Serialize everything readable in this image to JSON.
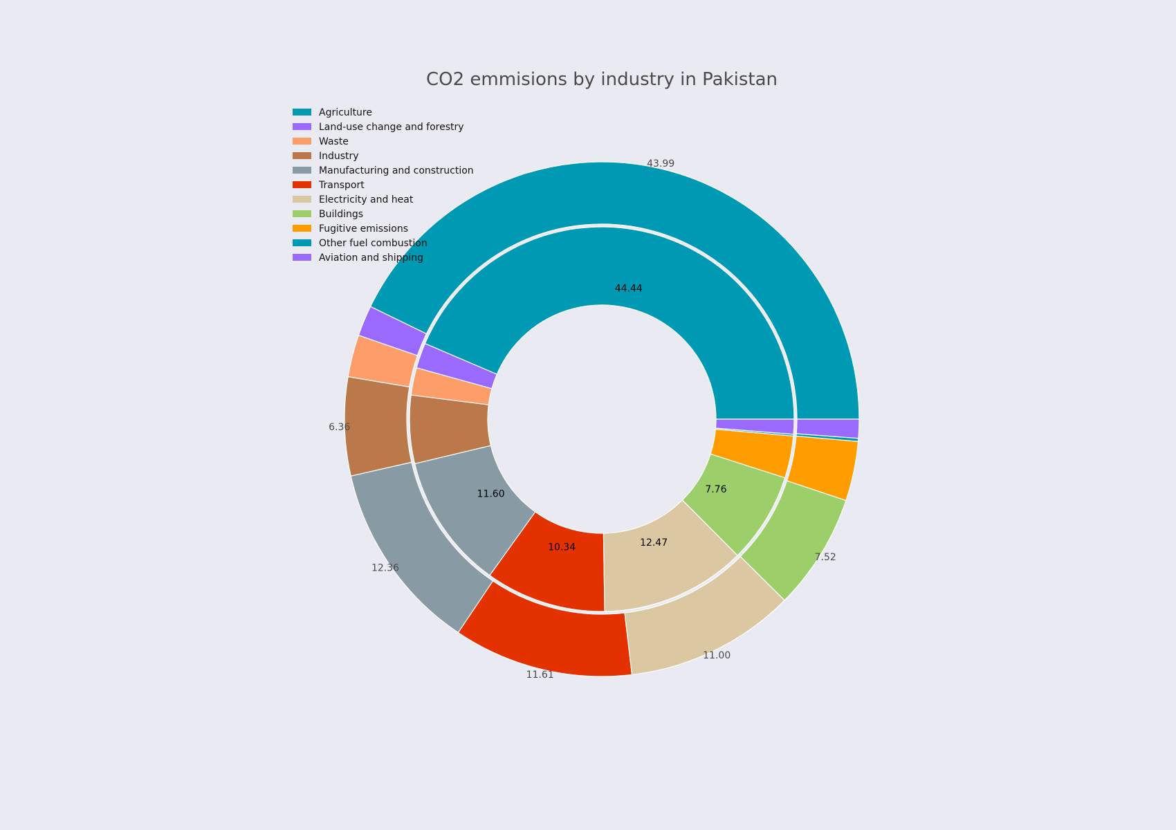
{
  "chart_data": {
    "type": "pie",
    "title": "CO2 emmisions by industry in Pakistan",
    "legend_position": "top-left",
    "categories": [
      "Agriculture",
      "Land-use change and forestry",
      "Waste",
      "Industry",
      "Manufacturing and construction",
      "Transport",
      "Electricity and heat",
      "Buildings",
      "Fugitive emissions",
      "Other fuel combustion",
      "Aviation and shipping"
    ],
    "colors": [
      "#0099b4",
      "#9a6aff",
      "#fd9d6a",
      "#bb784b",
      "#889aa4",
      "#e33200",
      "#dbc7a2",
      "#9ccf69",
      "#ff9c00",
      "#0099b4",
      "#9a6aff"
    ],
    "series": [
      {
        "ring": "outer",
        "values": [
          43.99,
          1.98,
          2.72,
          6.36,
          12.36,
          11.61,
          11.0,
          7.52,
          3.84,
          0.2,
          1.22
        ],
        "labels": [
          "43.99",
          "",
          "",
          "6.36",
          "12.36",
          "11.61",
          "11.00",
          "7.52",
          "",
          "",
          ""
        ]
      },
      {
        "ring": "inner",
        "values": [
          44.44,
          2.17,
          2.35,
          5.84,
          11.6,
          10.34,
          12.47,
          7.76,
          3.6,
          0.15,
          1.28
        ],
        "labels": [
          "44.44",
          "",
          "",
          "",
          "11.60",
          "10.34",
          "12.47",
          "7.76",
          "",
          "",
          ""
        ]
      }
    ]
  }
}
